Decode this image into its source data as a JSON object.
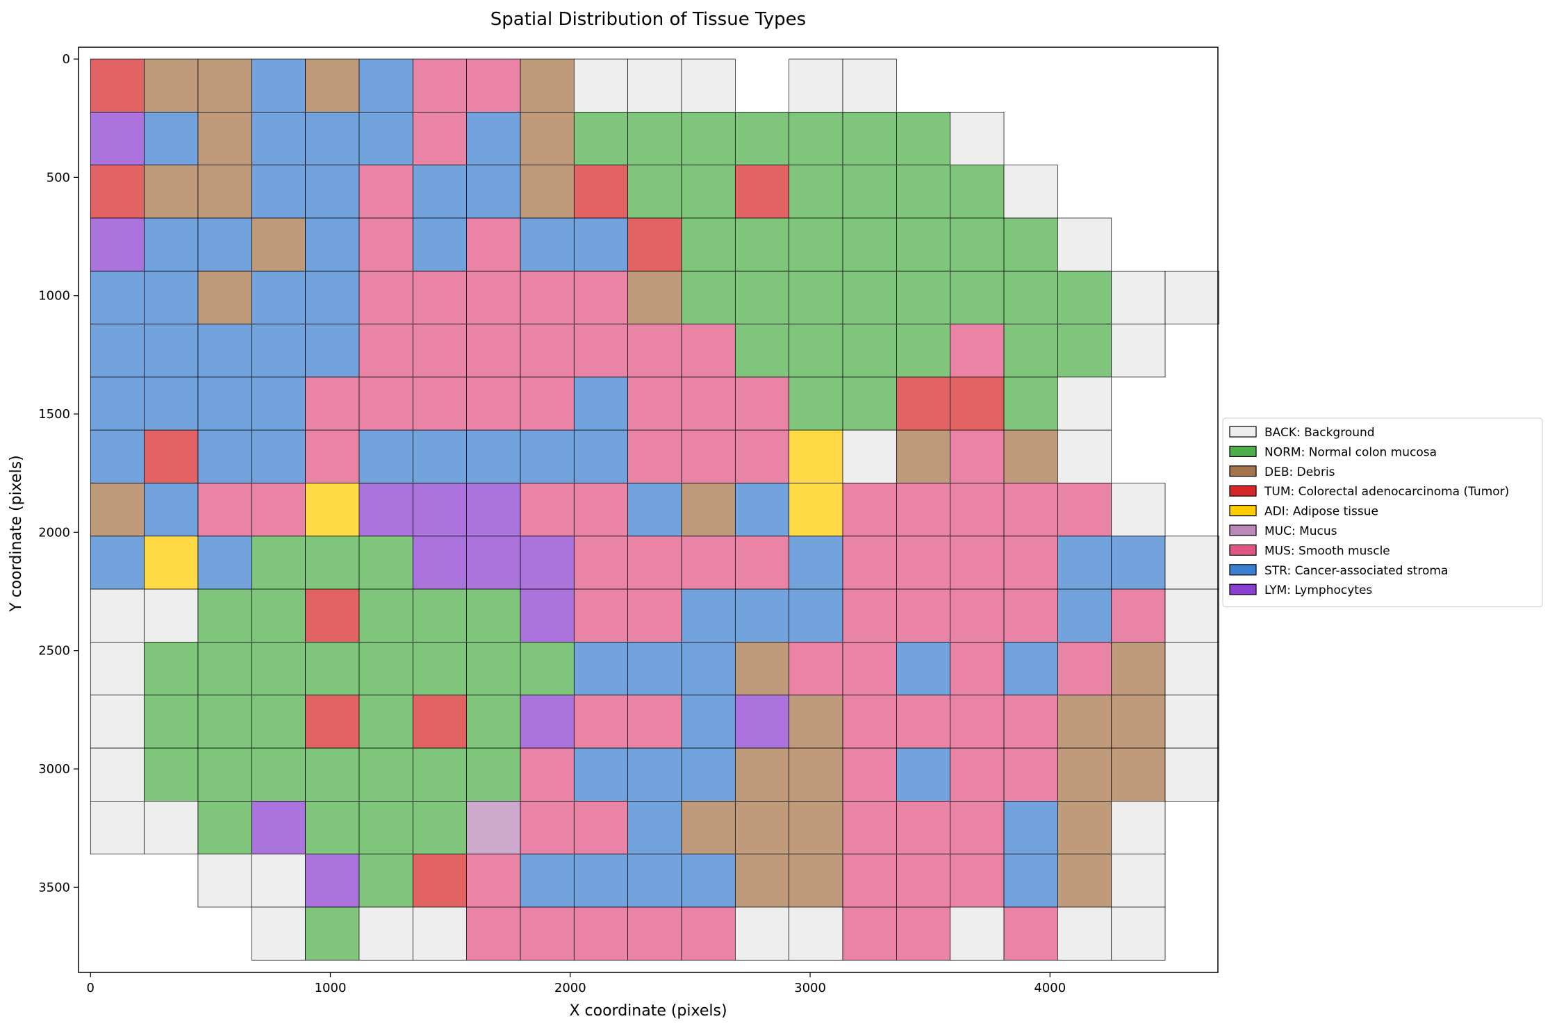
{
  "chart_data": {
    "type": "heatmap",
    "title": "Spatial Distribution of Tissue Types",
    "xlabel": "X coordinate (pixels)",
    "ylabel": "Y coordinate (pixels)",
    "xlim": [
      -50,
      4700
    ],
    "ylim": [
      3860,
      -50
    ],
    "y_inverted": true,
    "grid": false,
    "xticks": [
      0,
      1000,
      2000,
      3000,
      4000
    ],
    "yticks": [
      0,
      500,
      1000,
      1500,
      2000,
      2500,
      3000,
      3500
    ],
    "tile_size": 224,
    "tile_x": [
      0,
      224,
      448,
      672,
      896,
      1120,
      1344,
      1568,
      1792,
      2016,
      2240,
      2464,
      2688,
      2912,
      3136,
      3360,
      3584,
      3808,
      4032,
      4256,
      4480
    ],
    "tile_y": [
      0,
      224,
      448,
      672,
      896,
      1120,
      1344,
      1568,
      1792,
      2016,
      2240,
      2464,
      2688,
      2912,
      3136,
      3360,
      3584
    ],
    "legend_position": "right",
    "legend": [
      {
        "code": "BACK",
        "label": "BACK: Background",
        "color": "#eeeeee"
      },
      {
        "code": "NORM",
        "label": "NORM: Normal colon mucosa",
        "color": "#4daf4a"
      },
      {
        "code": "DEB",
        "label": "DEB: Debris",
        "color": "#a6744a"
      },
      {
        "code": "TUM",
        "label": "TUM: Colorectal adenocarcinoma (Tumor)",
        "color": "#d62728"
      },
      {
        "code": "ADI",
        "label": "ADI: Adipose tissue",
        "color": "#ffcc00"
      },
      {
        "code": "MUC",
        "label": "MUC: Mucus",
        "color": "#bb88bb"
      },
      {
        "code": "MUS",
        "label": "MUS: Smooth muscle",
        "color": "#e05585"
      },
      {
        "code": "STR",
        "label": "STR: Cancer-associated stroma",
        "color": "#3b7fd0"
      },
      {
        "code": "LYM",
        "label": "LYM: Lymphocytes",
        "color": "#8a3fd0"
      }
    ],
    "tiles": [
      [
        "TUM",
        "DEB",
        "DEB",
        "STR",
        "DEB",
        "STR",
        "MUS",
        "MUS",
        "DEB",
        "BACK",
        "BACK",
        "BACK",
        null,
        "BACK",
        "BACK",
        null,
        null,
        null,
        null,
        null,
        null
      ],
      [
        "LYM",
        "STR",
        "DEB",
        "STR",
        "STR",
        "STR",
        "MUS",
        "STR",
        "DEB",
        "NORM",
        "NORM",
        "NORM",
        "NORM",
        "NORM",
        "NORM",
        "NORM",
        "BACK",
        null,
        null,
        null,
        null
      ],
      [
        "TUM",
        "DEB",
        "DEB",
        "STR",
        "STR",
        "MUS",
        "STR",
        "STR",
        "DEB",
        "TUM",
        "NORM",
        "NORM",
        "TUM",
        "NORM",
        "NORM",
        "NORM",
        "NORM",
        "BACK",
        null,
        null,
        null
      ],
      [
        "LYM",
        "STR",
        "STR",
        "DEB",
        "STR",
        "MUS",
        "STR",
        "MUS",
        "STR",
        "STR",
        "TUM",
        "NORM",
        "NORM",
        "NORM",
        "NORM",
        "NORM",
        "NORM",
        "NORM",
        "BACK",
        null,
        null
      ],
      [
        "STR",
        "STR",
        "DEB",
        "STR",
        "STR",
        "MUS",
        "MUS",
        "MUS",
        "MUS",
        "MUS",
        "DEB",
        "NORM",
        "NORM",
        "NORM",
        "NORM",
        "NORM",
        "NORM",
        "NORM",
        "NORM",
        "BACK",
        "BACK"
      ],
      [
        "STR",
        "STR",
        "STR",
        "STR",
        "STR",
        "MUS",
        "MUS",
        "MUS",
        "MUS",
        "MUS",
        "MUS",
        "MUS",
        "NORM",
        "NORM",
        "NORM",
        "NORM",
        "MUS",
        "NORM",
        "NORM",
        "BACK",
        null
      ],
      [
        "STR",
        "STR",
        "STR",
        "STR",
        "MUS",
        "MUS",
        "MUS",
        "MUS",
        "MUS",
        "STR",
        "MUS",
        "MUS",
        "MUS",
        "NORM",
        "NORM",
        "TUM",
        "TUM",
        "NORM",
        "BACK",
        null,
        null
      ],
      [
        "STR",
        "TUM",
        "STR",
        "STR",
        "MUS",
        "STR",
        "STR",
        "STR",
        "STR",
        "STR",
        "MUS",
        "MUS",
        "MUS",
        "ADI",
        "BACK",
        "DEB",
        "MUS",
        "DEB",
        "BACK",
        null,
        null
      ],
      [
        "DEB",
        "STR",
        "MUS",
        "MUS",
        "ADI",
        "LYM",
        "LYM",
        "LYM",
        "MUS",
        "MUS",
        "STR",
        "DEB",
        "STR",
        "ADI",
        "MUS",
        "MUS",
        "MUS",
        "MUS",
        "MUS",
        "BACK",
        null
      ],
      [
        "STR",
        "ADI",
        "STR",
        "NORM",
        "NORM",
        "NORM",
        "LYM",
        "LYM",
        "LYM",
        "MUS",
        "MUS",
        "MUS",
        "MUS",
        "STR",
        "MUS",
        "MUS",
        "MUS",
        "MUS",
        "STR",
        "STR",
        "BACK"
      ],
      [
        "BACK",
        "BACK",
        "NORM",
        "NORM",
        "TUM",
        "NORM",
        "NORM",
        "NORM",
        "LYM",
        "MUS",
        "MUS",
        "STR",
        "STR",
        "STR",
        "MUS",
        "MUS",
        "MUS",
        "MUS",
        "STR",
        "MUS",
        "BACK"
      ],
      [
        "BACK",
        "NORM",
        "NORM",
        "NORM",
        "NORM",
        "NORM",
        "NORM",
        "NORM",
        "NORM",
        "STR",
        "STR",
        "STR",
        "DEB",
        "MUS",
        "MUS",
        "STR",
        "MUS",
        "STR",
        "MUS",
        "DEB",
        "BACK"
      ],
      [
        "BACK",
        "NORM",
        "NORM",
        "NORM",
        "TUM",
        "NORM",
        "TUM",
        "NORM",
        "LYM",
        "MUS",
        "MUS",
        "STR",
        "LYM",
        "DEB",
        "MUS",
        "MUS",
        "MUS",
        "MUS",
        "DEB",
        "DEB",
        "BACK"
      ],
      [
        "BACK",
        "NORM",
        "NORM",
        "NORM",
        "NORM",
        "NORM",
        "NORM",
        "NORM",
        "MUS",
        "STR",
        "STR",
        "STR",
        "DEB",
        "DEB",
        "MUS",
        "STR",
        "MUS",
        "MUS",
        "DEB",
        "DEB",
        "BACK"
      ],
      [
        "BACK",
        "BACK",
        "NORM",
        "LYM",
        "NORM",
        "NORM",
        "NORM",
        "MUC",
        "MUS",
        "MUS",
        "STR",
        "DEB",
        "DEB",
        "DEB",
        "MUS",
        "MUS",
        "MUS",
        "STR",
        "DEB",
        "BACK",
        null
      ],
      [
        null,
        null,
        "BACK",
        "BACK",
        "LYM",
        "NORM",
        "TUM",
        "MUS",
        "STR",
        "STR",
        "STR",
        "STR",
        "DEB",
        "DEB",
        "MUS",
        "MUS",
        "MUS",
        "STR",
        "DEB",
        "BACK",
        null
      ],
      [
        null,
        null,
        null,
        "BACK",
        "NORM",
        "BACK",
        "BACK",
        "MUS",
        "MUS",
        "MUS",
        "MUS",
        "MUS",
        "BACK",
        "BACK",
        "MUS",
        "MUS",
        "BACK",
        "MUS",
        "BACK",
        "BACK",
        null
      ]
    ]
  }
}
